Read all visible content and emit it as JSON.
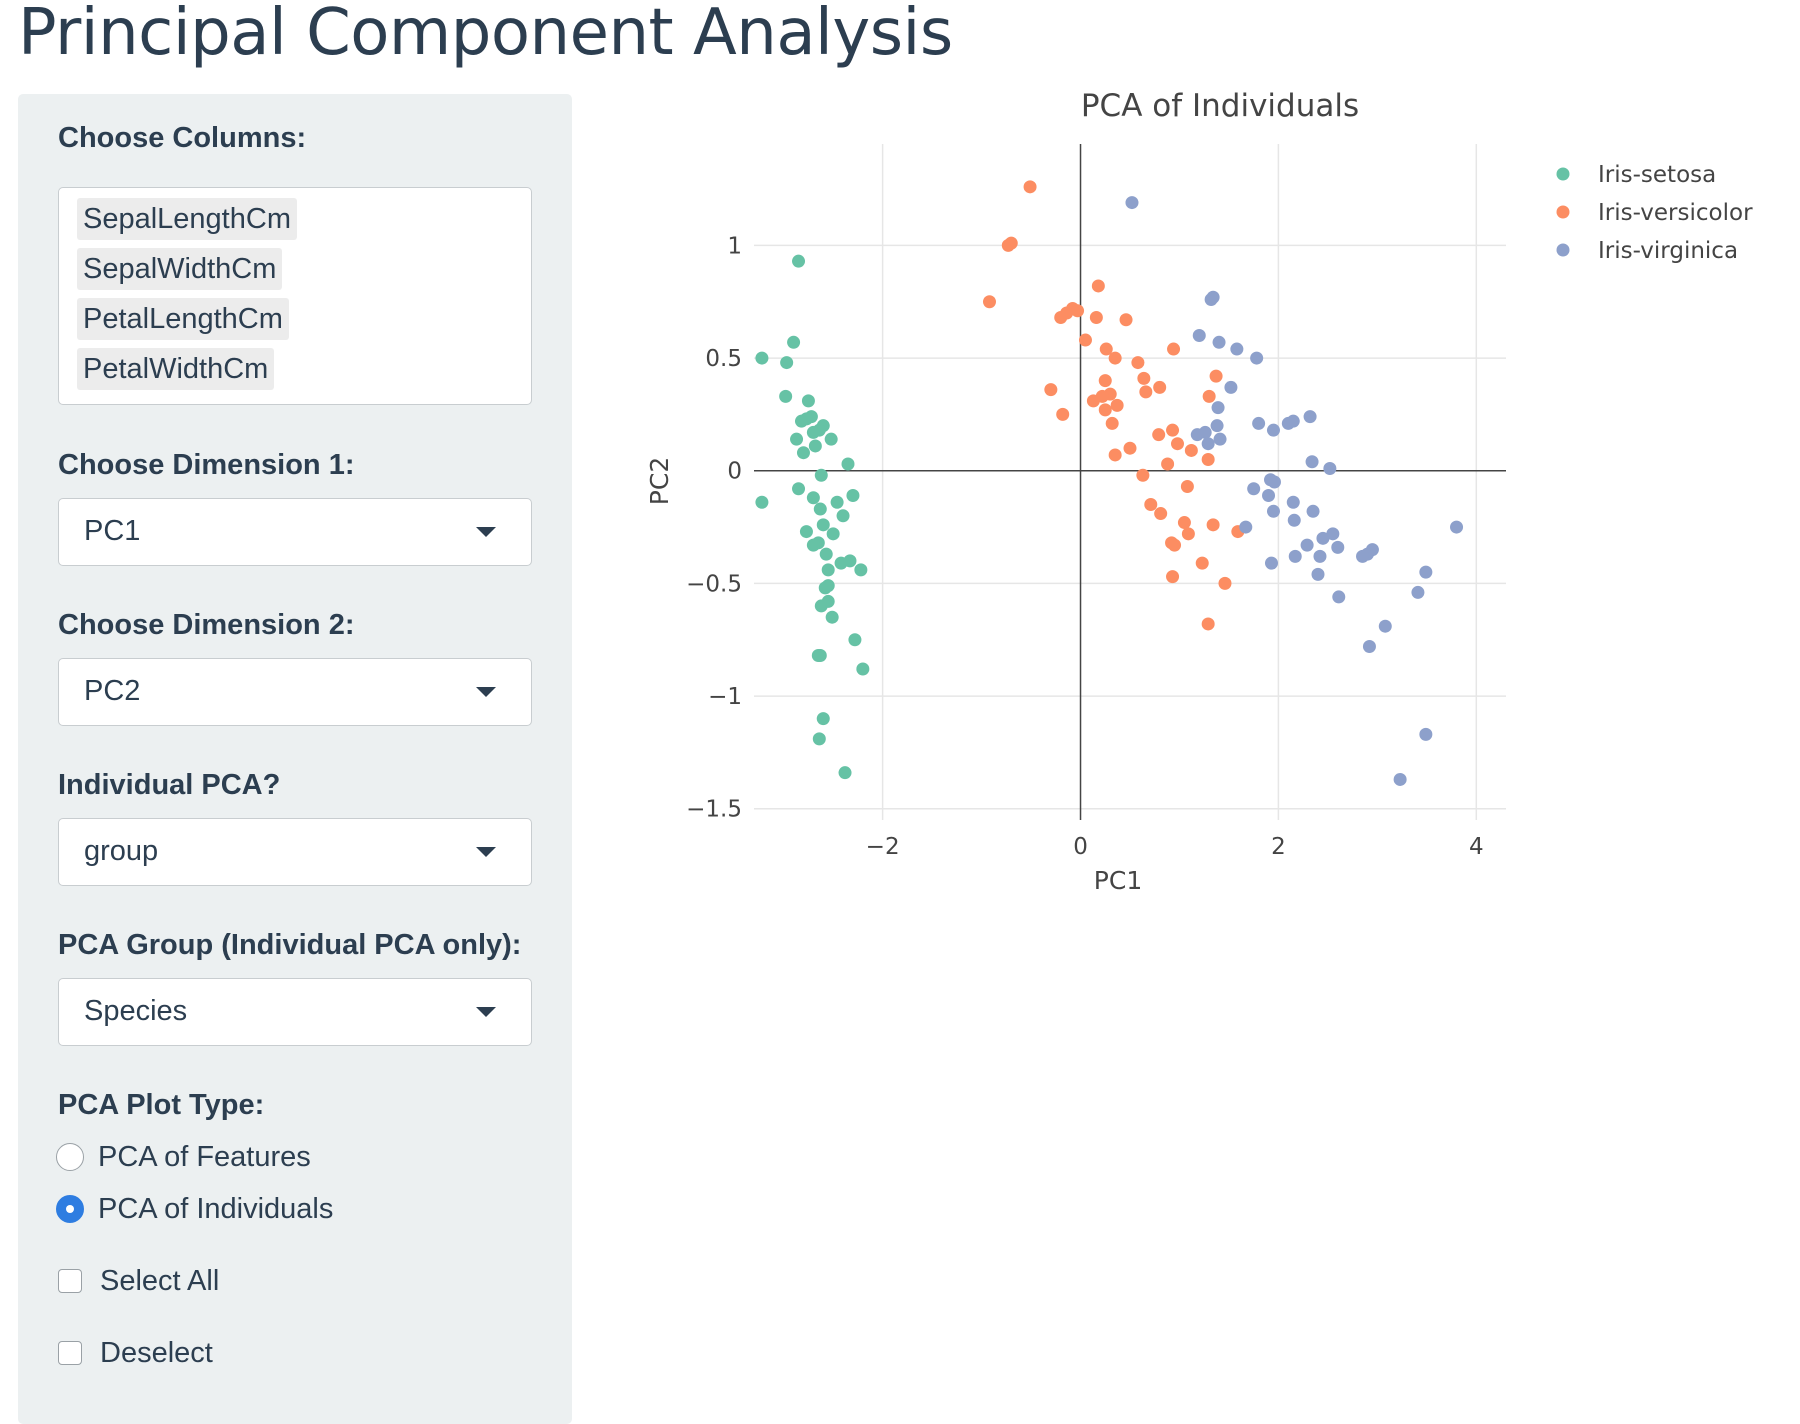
{
  "page": {
    "title": "Principal Component Analysis"
  },
  "sidebar": {
    "columns_label": "Choose Columns:",
    "columns_selected": [
      "SepalLengthCm",
      "SepalWidthCm",
      "PetalLengthCm",
      "PetalWidthCm"
    ],
    "dim1_label": "Choose Dimension 1:",
    "dim1_value": "PC1",
    "dim2_label": "Choose Dimension 2:",
    "dim2_value": "PC2",
    "individual_label": "Individual PCA?",
    "individual_value": "group",
    "group_label": "PCA Group (Individual PCA only):",
    "group_value": "Species",
    "plot_type_label": "PCA Plot Type:",
    "plot_type_options": [
      "PCA of Features",
      "PCA of Individuals"
    ],
    "plot_type_selected": "PCA of Individuals",
    "select_all_label": "Select All",
    "deselect_label": "Deselect"
  },
  "chart_data": {
    "type": "scatter",
    "title": "PCA of Individuals",
    "xlabel": "PC1",
    "ylabel": "PC2",
    "xlim": [
      -3.3,
      4.3
    ],
    "ylim": [
      -1.55,
      1.45
    ],
    "xticks": [
      -2,
      0,
      2,
      4
    ],
    "xtick_labels": [
      "−2",
      "0",
      "2",
      "4"
    ],
    "yticks": [
      -1.5,
      -1,
      -0.5,
      0,
      0.5,
      1
    ],
    "ytick_labels": [
      "−1.5",
      "−1",
      "−0.5",
      "0",
      "0.5",
      "1"
    ],
    "grid": true,
    "zero_lines": true,
    "legend_position": "top-right",
    "series": [
      {
        "name": "Iris-setosa",
        "color": "#66c2a5",
        "points": [
          [
            -2.85,
            0.93
          ],
          [
            -2.9,
            0.57
          ],
          [
            -3.22,
            0.5
          ],
          [
            -2.97,
            0.48
          ],
          [
            -2.98,
            0.33
          ],
          [
            -2.75,
            0.31
          ],
          [
            -2.72,
            0.24
          ],
          [
            -2.82,
            0.22
          ],
          [
            -2.77,
            0.23
          ],
          [
            -2.6,
            0.2
          ],
          [
            -2.64,
            0.18
          ],
          [
            -2.7,
            0.17
          ],
          [
            -2.87,
            0.14
          ],
          [
            -2.52,
            0.14
          ],
          [
            -2.68,
            0.11
          ],
          [
            -2.8,
            0.08
          ],
          [
            -2.35,
            0.03
          ],
          [
            -2.62,
            -0.02
          ],
          [
            -2.85,
            -0.08
          ],
          [
            -2.7,
            -0.12
          ],
          [
            -2.3,
            -0.11
          ],
          [
            -2.46,
            -0.14
          ],
          [
            -2.63,
            -0.17
          ],
          [
            -2.4,
            -0.2
          ],
          [
            -2.6,
            -0.24
          ],
          [
            -2.77,
            -0.27
          ],
          [
            -2.5,
            -0.28
          ],
          [
            -2.65,
            -0.32
          ],
          [
            -2.7,
            -0.33
          ],
          [
            -2.57,
            -0.37
          ],
          [
            -2.42,
            -0.41
          ],
          [
            -2.33,
            -0.4
          ],
          [
            -2.55,
            -0.44
          ],
          [
            -2.22,
            -0.44
          ],
          [
            -2.58,
            -0.52
          ],
          [
            -2.55,
            -0.51
          ],
          [
            -2.55,
            -0.58
          ],
          [
            -2.62,
            -0.6
          ],
          [
            -2.51,
            -0.65
          ],
          [
            -2.28,
            -0.75
          ],
          [
            -2.63,
            -0.82
          ],
          [
            -2.65,
            -0.82
          ],
          [
            -2.2,
            -0.88
          ],
          [
            -2.6,
            -1.1
          ],
          [
            -2.64,
            -1.19
          ],
          [
            -2.38,
            -1.34
          ],
          [
            -3.22,
            -0.14
          ]
        ]
      },
      {
        "name": "Iris-versicolor",
        "color": "#fc8d62",
        "points": [
          [
            -0.51,
            1.26
          ],
          [
            -0.73,
            1.0
          ],
          [
            -0.7,
            1.01
          ],
          [
            -0.92,
            0.75
          ],
          [
            0.18,
            0.82
          ],
          [
            -0.08,
            0.72
          ],
          [
            -0.14,
            0.7
          ],
          [
            -0.03,
            0.71
          ],
          [
            -0.2,
            0.68
          ],
          [
            0.16,
            0.68
          ],
          [
            0.46,
            0.67
          ],
          [
            0.05,
            0.58
          ],
          [
            0.94,
            0.54
          ],
          [
            0.26,
            0.54
          ],
          [
            0.35,
            0.5
          ],
          [
            0.58,
            0.48
          ],
          [
            1.37,
            0.42
          ],
          [
            0.64,
            0.41
          ],
          [
            0.25,
            0.4
          ],
          [
            0.8,
            0.37
          ],
          [
            -0.3,
            0.36
          ],
          [
            0.3,
            0.34
          ],
          [
            0.66,
            0.35
          ],
          [
            0.22,
            0.33
          ],
          [
            1.3,
            0.33
          ],
          [
            0.13,
            0.31
          ],
          [
            0.37,
            0.29
          ],
          [
            -0.18,
            0.25
          ],
          [
            0.25,
            0.27
          ],
          [
            0.32,
            0.21
          ],
          [
            0.93,
            0.18
          ],
          [
            0.79,
            0.16
          ],
          [
            0.98,
            0.12
          ],
          [
            0.5,
            0.1
          ],
          [
            1.12,
            0.09
          ],
          [
            0.88,
            0.03
          ],
          [
            0.35,
            0.07
          ],
          [
            1.29,
            0.05
          ],
          [
            0.63,
            -0.02
          ],
          [
            1.08,
            -0.07
          ],
          [
            0.71,
            -0.15
          ],
          [
            0.81,
            -0.19
          ],
          [
            1.05,
            -0.23
          ],
          [
            1.34,
            -0.24
          ],
          [
            1.59,
            -0.27
          ],
          [
            1.09,
            -0.28
          ],
          [
            0.92,
            -0.32
          ],
          [
            0.95,
            -0.33
          ],
          [
            1.23,
            -0.41
          ],
          [
            0.93,
            -0.47
          ],
          [
            1.46,
            -0.5
          ],
          [
            1.29,
            -0.68
          ]
        ]
      },
      {
        "name": "Iris-virginica",
        "color": "#8da0cb",
        "points": [
          [
            0.52,
            1.19
          ],
          [
            1.34,
            0.77
          ],
          [
            1.32,
            0.76
          ],
          [
            1.2,
            0.6
          ],
          [
            1.4,
            0.57
          ],
          [
            1.58,
            0.54
          ],
          [
            1.78,
            0.5
          ],
          [
            1.52,
            0.37
          ],
          [
            1.39,
            0.28
          ],
          [
            2.32,
            0.24
          ],
          [
            1.8,
            0.21
          ],
          [
            2.1,
            0.21
          ],
          [
            2.15,
            0.22
          ],
          [
            1.95,
            0.18
          ],
          [
            1.38,
            0.2
          ],
          [
            1.26,
            0.17
          ],
          [
            1.18,
            0.16
          ],
          [
            1.41,
            0.14
          ],
          [
            1.29,
            0.12
          ],
          [
            2.34,
            0.04
          ],
          [
            2.52,
            0.01
          ],
          [
            1.92,
            -0.04
          ],
          [
            1.96,
            -0.05
          ],
          [
            1.75,
            -0.08
          ],
          [
            1.9,
            -0.11
          ],
          [
            2.15,
            -0.14
          ],
          [
            1.95,
            -0.18
          ],
          [
            2.35,
            -0.18
          ],
          [
            2.16,
            -0.22
          ],
          [
            1.67,
            -0.25
          ],
          [
            3.8,
            -0.25
          ],
          [
            2.55,
            -0.28
          ],
          [
            2.45,
            -0.3
          ],
          [
            2.29,
            -0.33
          ],
          [
            2.6,
            -0.34
          ],
          [
            2.95,
            -0.35
          ],
          [
            2.9,
            -0.37
          ],
          [
            2.85,
            -0.38
          ],
          [
            2.42,
            -0.38
          ],
          [
            2.17,
            -0.38
          ],
          [
            1.93,
            -0.41
          ],
          [
            3.49,
            -0.45
          ],
          [
            2.4,
            -0.46
          ],
          [
            3.41,
            -0.54
          ],
          [
            2.61,
            -0.56
          ],
          [
            3.08,
            -0.69
          ],
          [
            2.92,
            -0.78
          ],
          [
            3.49,
            -1.17
          ],
          [
            3.23,
            -1.37
          ]
        ]
      }
    ]
  }
}
